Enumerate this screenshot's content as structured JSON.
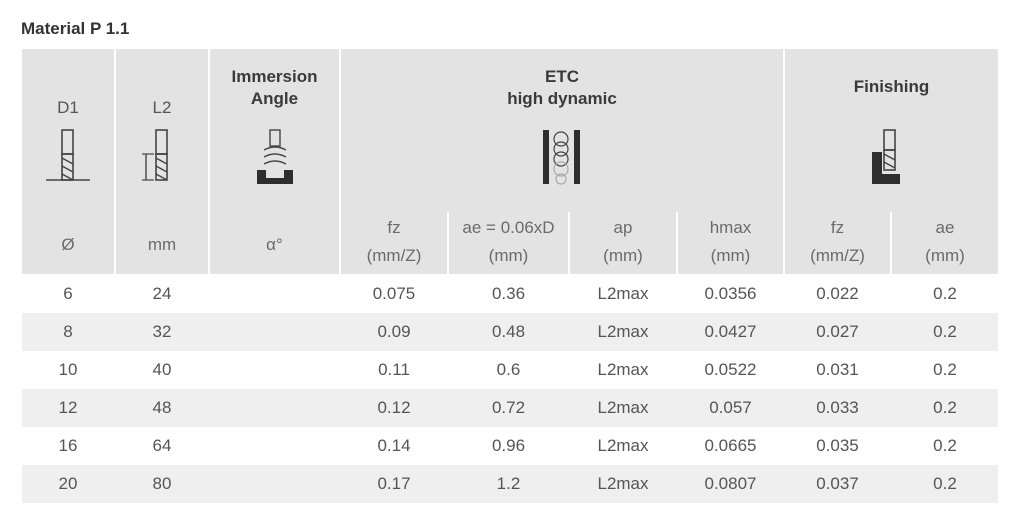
{
  "title": "Material P 1.1",
  "header": {
    "d1": "D1",
    "l2": "L2",
    "immersion": "Immersion\nAngle",
    "etc": "ETC\nhigh dynamic",
    "finishing": "Finishing",
    "units": {
      "d1": "Ø",
      "l2": "mm",
      "angle": "α°",
      "fz": "fz\n(mm/Z)",
      "ae_etc": "ae = 0.06xD\n(mm)",
      "ap": "ap\n(mm)",
      "hmax": "hmax\n(mm)",
      "fz_fin": "fz\n(mm/Z)",
      "ae_fin": "ae\n(mm)"
    }
  },
  "icons": [
    "end-mill-diameter-icon",
    "end-mill-length-icon",
    "immersion-angle-icon",
    "etc-trochoidal-icon",
    "finishing-icon"
  ],
  "rows": [
    [
      "6",
      "24",
      "",
      "0.075",
      "0.36",
      "L2max",
      "0.0356",
      "0.022",
      "0.2"
    ],
    [
      "8",
      "32",
      "",
      "0.09",
      "0.48",
      "L2max",
      "0.0427",
      "0.027",
      "0.2"
    ],
    [
      "10",
      "40",
      "",
      "0.11",
      "0.6",
      "L2max",
      "0.0522",
      "0.031",
      "0.2"
    ],
    [
      "12",
      "48",
      "",
      "0.12",
      "0.72",
      "L2max",
      "0.057",
      "0.033",
      "0.2"
    ],
    [
      "16",
      "64",
      "",
      "0.14",
      "0.96",
      "L2max",
      "0.0665",
      "0.035",
      "0.2"
    ],
    [
      "20",
      "80",
      "",
      "0.17",
      "1.2",
      "L2max",
      "0.0807",
      "0.037",
      "0.2"
    ]
  ]
}
